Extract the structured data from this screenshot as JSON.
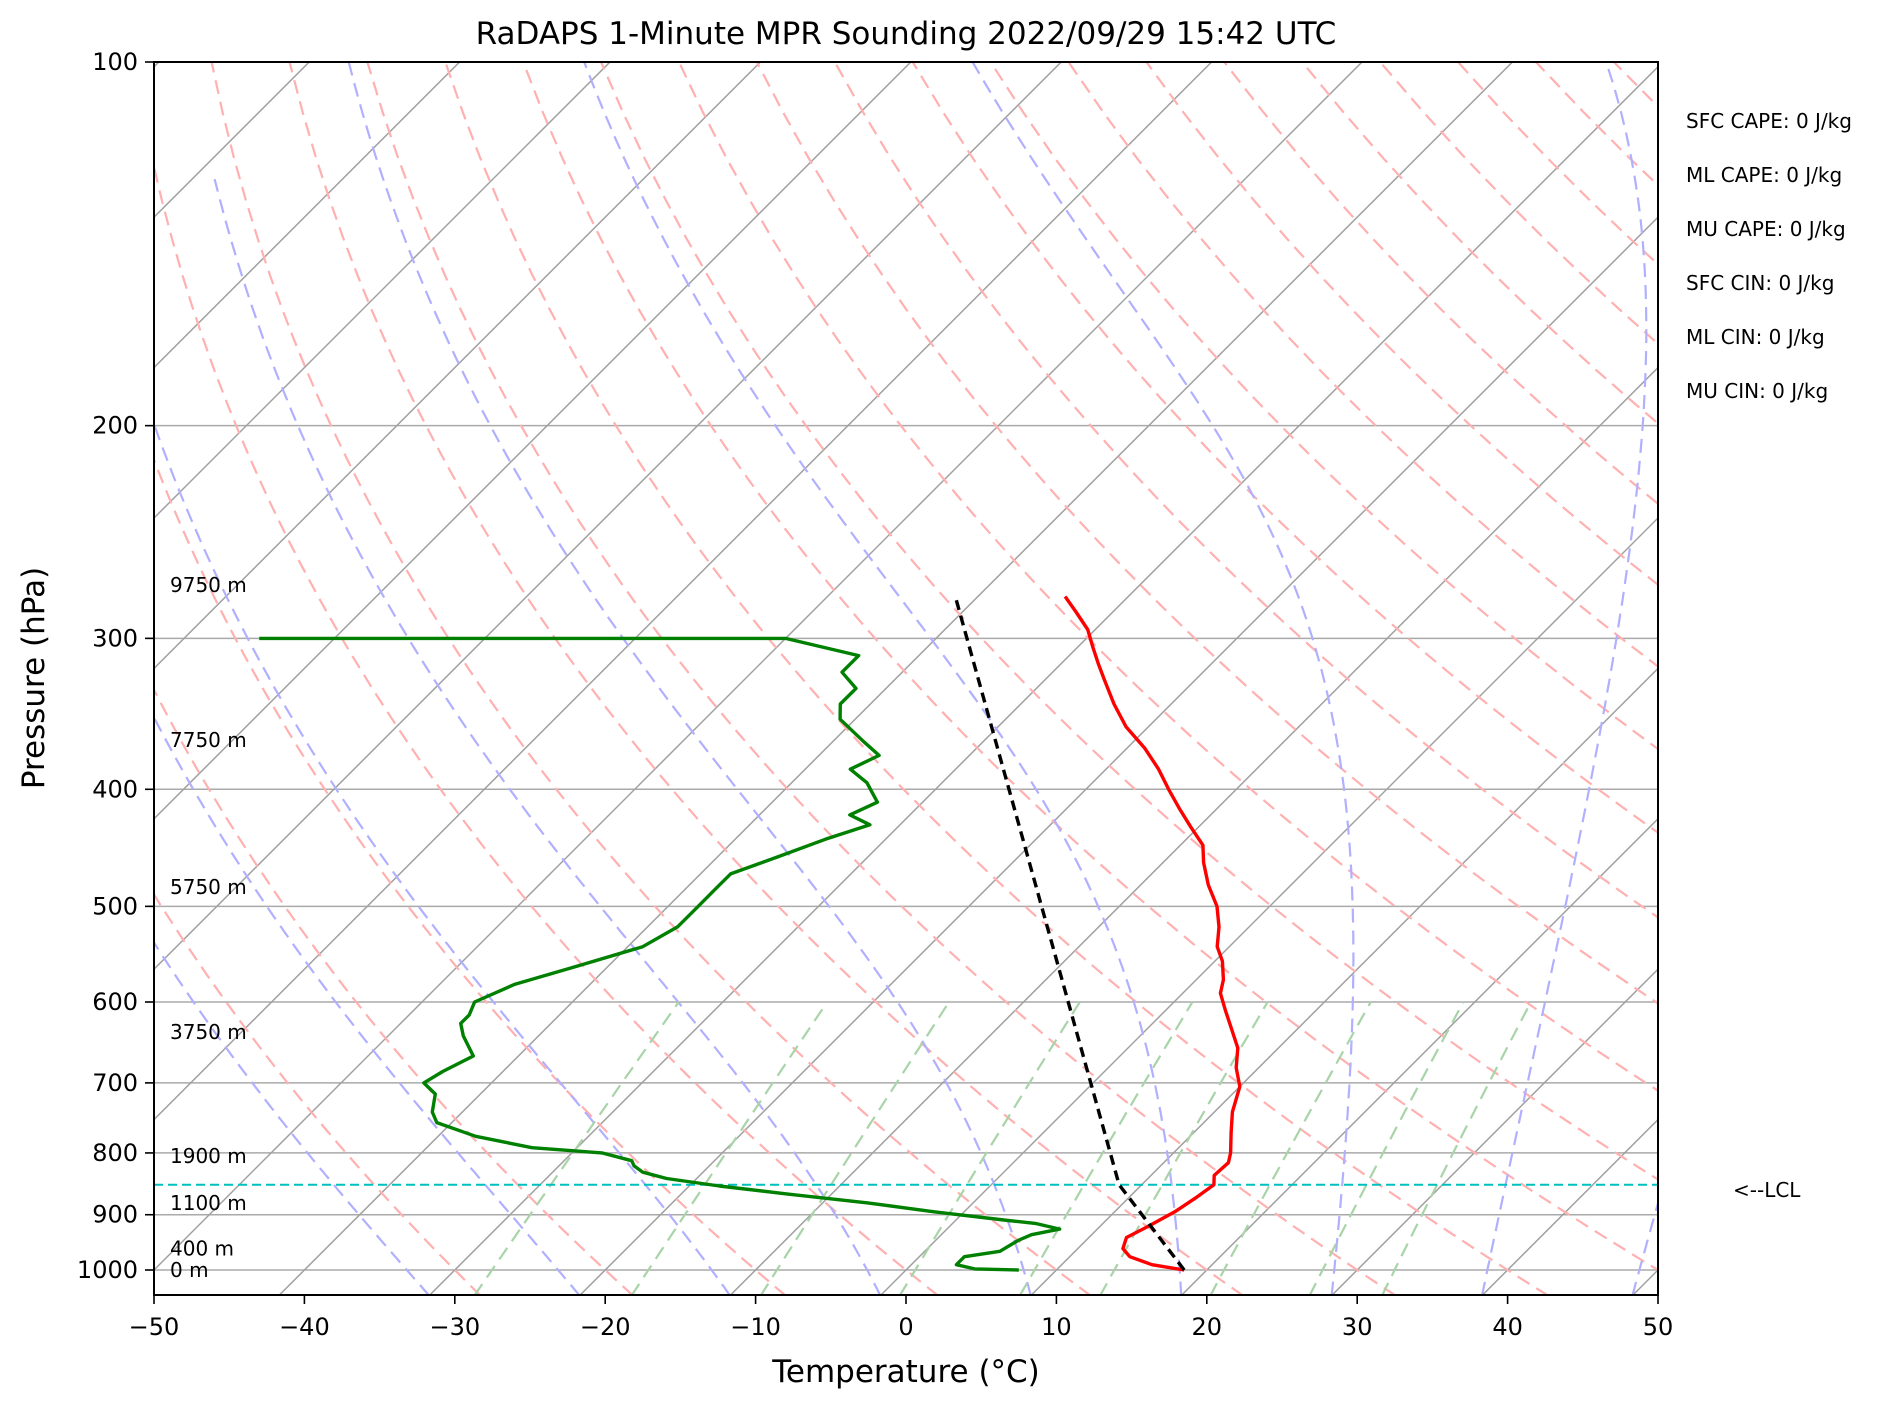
{
  "chart_data": {
    "type": "line",
    "title": "RaDAPS 1-Minute MPR Sounding 2022/09/29 15:42 UTC",
    "xlabel": "Temperature (°C)",
    "ylabel": "Pressure (hPa)",
    "xlim": [
      -50,
      50
    ],
    "ylim": [
      1050,
      100
    ],
    "x_ticks": [
      -50,
      -40,
      -30,
      -20,
      -10,
      0,
      10,
      20,
      30,
      40,
      50
    ],
    "x_tick_labels": [
      "−50",
      "−40",
      "−30",
      "−20",
      "−10",
      "0",
      "10",
      "20",
      "30",
      "40",
      "50"
    ],
    "y_ticks": [
      100,
      200,
      300,
      400,
      500,
      600,
      700,
      800,
      900,
      1000
    ],
    "y_tick_labels": [
      "100",
      "200",
      "300",
      "400",
      "500",
      "600",
      "700",
      "800",
      "900",
      "1000"
    ],
    "grid": true,
    "skew_t": true,
    "series": [
      {
        "color": "#ff0000",
        "points": [
          [
            18.5,
            1000
          ],
          [
            16,
            990
          ],
          [
            14,
            975
          ],
          [
            13,
            960
          ],
          [
            12.5,
            940
          ],
          [
            13.2,
            920
          ],
          [
            14,
            895
          ],
          [
            14.5,
            870
          ],
          [
            14.8,
            850
          ],
          [
            14.2,
            835
          ],
          [
            14.3,
            815
          ],
          [
            13.8,
            800
          ],
          [
            12.5,
            770
          ],
          [
            11.2,
            740
          ],
          [
            10,
            705
          ],
          [
            8.5,
            680
          ],
          [
            7.3,
            655
          ],
          [
            5.5,
            630
          ],
          [
            4,
            610
          ],
          [
            2.5,
            590
          ],
          [
            1.8,
            575
          ],
          [
            0.5,
            555
          ],
          [
            -0.8,
            540
          ],
          [
            -2,
            520
          ],
          [
            -3.5,
            500
          ],
          [
            -5.5,
            480
          ],
          [
            -7.3,
            460
          ],
          [
            -8.5,
            445
          ],
          [
            -10.5,
            430
          ],
          [
            -12.5,
            415
          ],
          [
            -14.5,
            400
          ],
          [
            -16.5,
            385
          ],
          [
            -18.8,
            370
          ],
          [
            -21.5,
            355
          ],
          [
            -23.8,
            340
          ],
          [
            -26,
            325
          ],
          [
            -27.5,
            315
          ],
          [
            -29,
            305
          ],
          [
            -30.5,
            295
          ],
          [
            -32.5,
            285
          ],
          [
            -34.2,
            277
          ]
        ]
      },
      {
        "color": "#008000",
        "points": [
          [
            7.5,
            1000
          ],
          [
            4.5,
            998
          ],
          [
            3,
            990
          ],
          [
            3,
            975
          ],
          [
            5,
            965
          ],
          [
            5.5,
            945
          ],
          [
            6,
            935
          ],
          [
            7.5,
            925
          ],
          [
            5.5,
            915
          ],
          [
            3.5,
            910
          ],
          [
            -2,
            895
          ],
          [
            -7,
            880
          ],
          [
            -13,
            865
          ],
          [
            -18,
            852
          ],
          [
            -22,
            840
          ],
          [
            -24,
            830
          ],
          [
            -25,
            820
          ],
          [
            -25.5,
            812
          ],
          [
            -28,
            800
          ],
          [
            -33,
            792
          ],
          [
            -37.5,
            775
          ],
          [
            -41,
            755
          ],
          [
            -42,
            740
          ],
          [
            -43,
            715
          ],
          [
            -44.5,
            700
          ],
          [
            -44,
            685
          ],
          [
            -43,
            665
          ],
          [
            -45,
            640
          ],
          [
            -46,
            625
          ],
          [
            -46,
            615
          ],
          [
            -46.5,
            600
          ],
          [
            -45,
            580
          ],
          [
            -42,
            560
          ],
          [
            -39,
            540
          ],
          [
            -38,
            520
          ],
          [
            -38,
            500
          ],
          [
            -38,
            480
          ],
          [
            -38,
            470
          ],
          [
            -36,
            455
          ],
          [
            -34,
            440
          ],
          [
            -32,
            428
          ],
          [
            -34,
            420
          ],
          [
            -33,
            410
          ],
          [
            -35,
            395
          ],
          [
            -37,
            385
          ],
          [
            -36,
            375
          ],
          [
            -38,
            365
          ],
          [
            -41,
            350
          ],
          [
            -42,
            340
          ],
          [
            -42,
            330
          ],
          [
            -44,
            320
          ],
          [
            -44,
            310
          ],
          [
            -50,
            300
          ],
          [
            -60,
            300
          ],
          [
            -85,
            300
          ]
        ]
      },
      {
        "color": "#000000",
        "style": "dashed",
        "points": [
          [
            18.5,
            1000
          ],
          [
            8.5,
            850
          ],
          [
            -41.5,
            277
          ]
        ]
      }
    ],
    "lcl_pressure": 850,
    "lcl_label": "<--LCL",
    "height_labels": [
      {
        "text": "0 m",
        "p": 1000
      },
      {
        "text": "400 m",
        "p": 960
      },
      {
        "text": "1100 m",
        "p": 880
      },
      {
        "text": "1900 m",
        "p": 805
      },
      {
        "text": "3750 m",
        "p": 635
      },
      {
        "text": "5750 m",
        "p": 482
      },
      {
        "text": "7750 m",
        "p": 364
      },
      {
        "text": "9750 m",
        "p": 271
      }
    ],
    "annotations": [
      "SFC CAPE: 0 J/kg",
      "ML CAPE: 0 J/kg",
      "MU CAPE: 0 J/kg",
      "SFC CIN: 0 J/kg",
      "ML CIN: 0 J/kg",
      "MU CIN: 0 J/kg"
    ],
    "colors": {
      "temperature": "#ff0000",
      "dewpoint": "#008000",
      "parcel": "#000000",
      "lcl": "#00bfbf",
      "isotherm": "#a0a0a0",
      "dry_adiabat": "#ffb0b0",
      "moist_adiabat": "#b0b0ff",
      "mixing_ratio": "#a8d4a8"
    }
  }
}
